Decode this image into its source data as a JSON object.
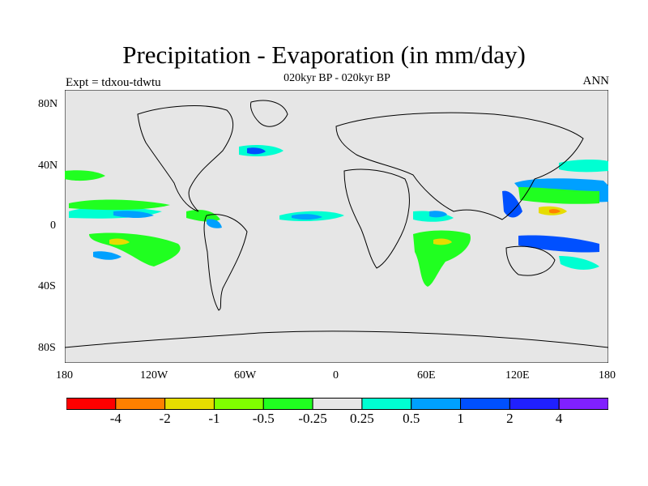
{
  "header": {
    "title": "Precipitation - Evaporation (in mm/day)",
    "subtitle": "020kyr BP - 020kyr BP",
    "left_label": "Expt = tdxou-tdwtu",
    "right_label": "ANN"
  },
  "map": {
    "background": "#e6e6e6",
    "lat_ticks": [
      "80N",
      "40N",
      "0",
      "40S",
      "80S"
    ],
    "lon_ticks": [
      "180",
      "120W",
      "60W",
      "0",
      "60E",
      "120E",
      "180"
    ]
  },
  "colorbar": {
    "colors": [
      "#ff0000",
      "#ff8000",
      "#e6dc00",
      "#80ff00",
      "#20ff20",
      "#e6e6e6",
      "#00ffd2",
      "#00a0ff",
      "#0050ff",
      "#2020ff",
      "#8020ff"
    ],
    "labels": [
      "-4",
      "-2",
      "-1",
      "-0.5",
      "-0.25",
      "0.25",
      "0.5",
      "1",
      "2",
      "4"
    ]
  }
}
